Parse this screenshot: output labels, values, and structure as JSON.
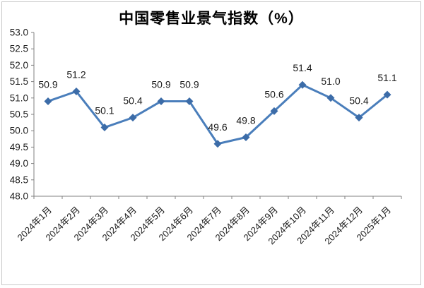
{
  "page": {
    "title": "中国零售业景气指数（%）"
  },
  "chart_data": {
    "type": "line",
    "title": "中国零售业景气指数（%）",
    "categories": [
      "2024年1月",
      "2024年2月",
      "2024年3月",
      "2024年4月",
      "2024年5月",
      "2024年6月",
      "2024年7月",
      "2024年8月",
      "2024年9月",
      "2024年10月",
      "2024年11月",
      "2024年12月",
      "2025年1月"
    ],
    "values": [
      50.9,
      51.2,
      50.1,
      50.4,
      50.9,
      50.9,
      49.6,
      49.8,
      50.6,
      51.4,
      51.0,
      50.4,
      51.1
    ],
    "data_labels": [
      "50.9",
      "51.2",
      "50.1",
      "50.4",
      "50.9",
      "50.9",
      "49.6",
      "49.8",
      "50.6",
      "51.4",
      "51.0",
      "50.4",
      "51.1"
    ],
    "xlabel": "",
    "ylabel": "",
    "ylim": [
      48.0,
      53.0
    ],
    "ytick_step": 0.5,
    "ytick_labels": [
      "48.0",
      "48.5",
      "49.0",
      "49.5",
      "50.0",
      "50.5",
      "51.0",
      "51.5",
      "52.0",
      "52.5",
      "53.0"
    ],
    "grid": false,
    "legend_position": "none",
    "marker": "diamond",
    "data_labels_position": "above",
    "colors": {
      "line": "#4a7ebb",
      "marker": "#3c6ca8",
      "axis": "#828282",
      "text": "#1a1a1a",
      "frame_border": "#c9c9c9",
      "background": "#ffffff"
    }
  }
}
